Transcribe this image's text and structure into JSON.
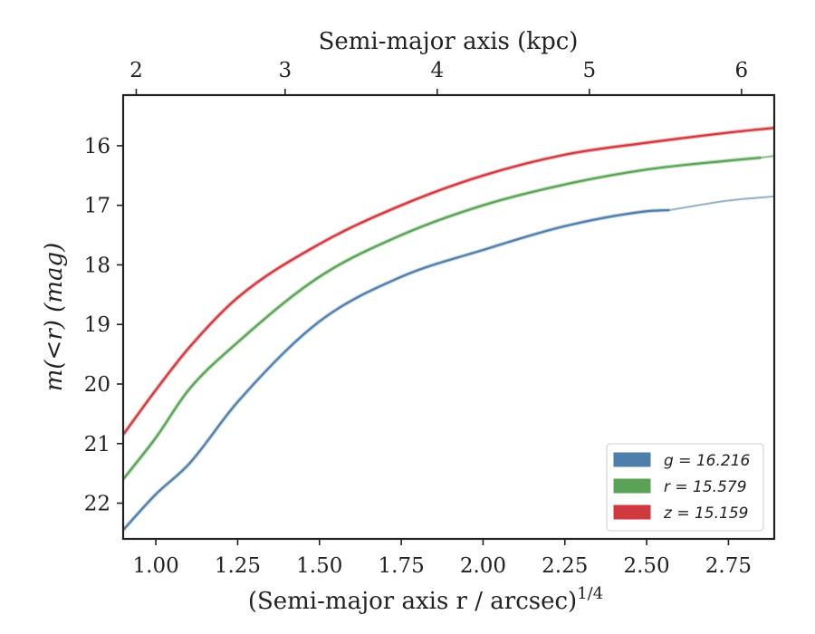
{
  "chart_data": {
    "type": "line",
    "title": "",
    "xlabel_bottom": "(Semi-major axis r / arcsec)",
    "xlabel_bottom_exponent": "1/4",
    "xlabel_top": "Semi-major axis (kpc)",
    "ylabel": "m(<r) (mag)",
    "xlim": [
      0.9,
      2.89
    ],
    "ylim": [
      22.6,
      15.15
    ],
    "y_inverted": true,
    "x_ticks": [
      1.0,
      1.25,
      1.5,
      1.75,
      2.0,
      2.25,
      2.5,
      2.75
    ],
    "x_tick_labels": [
      "1.00",
      "1.25",
      "1.50",
      "1.75",
      "2.00",
      "2.25",
      "2.50",
      "2.75"
    ],
    "y_ticks": [
      16,
      17,
      18,
      19,
      20,
      21,
      22
    ],
    "y_tick_labels": [
      "16",
      "17",
      "18",
      "19",
      "20",
      "21",
      "22"
    ],
    "top_axis_kpc_ticks": [
      2,
      3,
      4,
      5,
      6
    ],
    "top_axis_kpc_tick_labels": [
      "2",
      "3",
      "4",
      "5",
      "6"
    ],
    "top_axis_kpc_at_x": [
      0.94,
      1.395,
      1.86,
      2.325,
      2.79
    ],
    "legend_position": "lower-right",
    "series": [
      {
        "name": "g",
        "label": "g = 16.216",
        "color": "#4e7fab",
        "fit_color": "#9ab4c8",
        "x": [
          0.9,
          1.0,
          1.1,
          1.25,
          1.5,
          1.75,
          2.0,
          2.25,
          2.5,
          2.57
        ],
        "values": [
          22.45,
          21.85,
          21.35,
          20.3,
          18.95,
          18.2,
          17.75,
          17.35,
          17.1,
          17.08
        ],
        "fit_x": [
          2.57,
          2.75,
          2.89
        ],
        "fit_values": [
          17.08,
          16.92,
          16.85
        ]
      },
      {
        "name": "r",
        "label": "r = 15.579",
        "color": "#5aa356",
        "fit_color": "#8ec48a",
        "x": [
          0.9,
          1.0,
          1.1,
          1.25,
          1.5,
          1.75,
          2.0,
          2.25,
          2.5,
          2.75,
          2.85
        ],
        "values": [
          21.6,
          20.9,
          20.1,
          19.3,
          18.2,
          17.5,
          17.0,
          16.65,
          16.4,
          16.25,
          16.2
        ],
        "fit_x": [
          2.85,
          2.89
        ],
        "fit_values": [
          16.2,
          16.17
        ]
      },
      {
        "name": "z",
        "label": "z = 15.159",
        "color": "#d0393e",
        "fit_color": "#e47a7d",
        "x": [
          0.9,
          1.0,
          1.1,
          1.25,
          1.5,
          1.75,
          2.0,
          2.25,
          2.5,
          2.75,
          2.89
        ],
        "values": [
          20.85,
          20.1,
          19.4,
          18.55,
          17.65,
          17.0,
          16.5,
          16.15,
          15.95,
          15.78,
          15.7
        ],
        "fit_x": [],
        "fit_values": []
      }
    ]
  }
}
